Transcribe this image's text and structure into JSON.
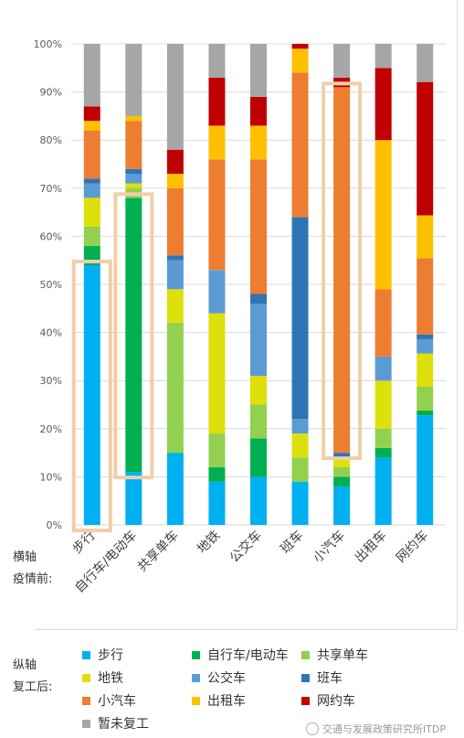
{
  "chart_data": {
    "type": "bar",
    "stacked": true,
    "categories": [
      "步行",
      "自行车/电动车",
      "共享单车",
      "地铁",
      "公交车",
      "班车",
      "小汽车",
      "出租车",
      "网约车"
    ],
    "ylim": [
      0,
      100
    ],
    "y_ticks": [
      "0%",
      "10%",
      "20%",
      "30%",
      "40%",
      "50%",
      "60%",
      "70%",
      "80%",
      "90%",
      "100%"
    ],
    "series": [
      {
        "name": "步行",
        "color": "#00b0f0",
        "values": [
          54,
          11,
          15,
          9,
          10,
          9,
          8,
          14,
          23
        ]
      },
      {
        "name": "自行车/电动车",
        "color": "#00b050",
        "values": [
          4,
          57,
          0,
          3,
          8,
          0,
          2,
          2,
          1
        ]
      },
      {
        "name": "共享单车",
        "color": "#92d050",
        "values": [
          4,
          2,
          27,
          7,
          7,
          5,
          2,
          4,
          5
        ]
      },
      {
        "name": "地铁",
        "color": "#dde00a",
        "values": [
          6,
          1,
          7,
          25,
          6,
          5,
          2,
          10,
          7
        ]
      },
      {
        "name": "公交车",
        "color": "#5b9bd5",
        "values": [
          3,
          2,
          6,
          9,
          15,
          3,
          0,
          5,
          3
        ]
      },
      {
        "name": "班车",
        "color": "#2e75b6",
        "values": [
          1,
          1,
          1,
          0,
          2,
          42,
          1,
          0,
          1
        ]
      },
      {
        "name": "小汽车",
        "color": "#ed7d31",
        "values": [
          10,
          10,
          14,
          23,
          28,
          30,
          76,
          14,
          16
        ]
      },
      {
        "name": "出租车",
        "color": "#ffc000",
        "values": [
          2,
          1,
          3,
          7,
          7,
          5,
          0,
          31,
          9
        ]
      },
      {
        "name": "网约车",
        "color": "#c00000",
        "values": [
          3,
          0,
          5,
          10,
          6,
          1,
          2,
          15,
          28
        ]
      },
      {
        "name": "暂未复工",
        "color": "#a6a6a6",
        "values": [
          13,
          15,
          22,
          7,
          11,
          0,
          7,
          5,
          8
        ]
      }
    ],
    "highlights": [
      "步行",
      "自行车/电动车",
      "小汽车"
    ],
    "highlight_color": "#f0cfa8"
  },
  "labels": {
    "x_axis_title": "横轴",
    "x_axis_sub": "疫情前:",
    "y_axis_title": "纵轴",
    "y_axis_sub": "复工后:"
  },
  "watermark": "交通与发展政策研究所ITDP"
}
